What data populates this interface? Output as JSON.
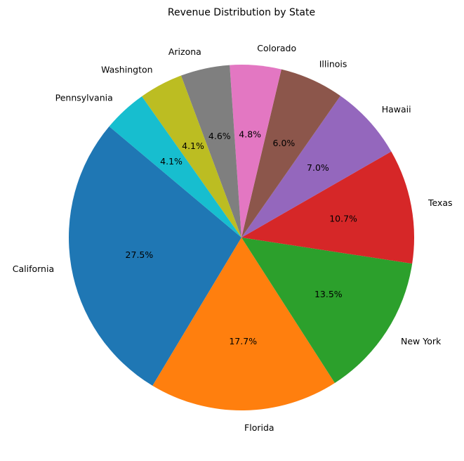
{
  "chart_data": {
    "type": "pie",
    "title": "Revenue Distribution by State",
    "start_angle_deg": 140,
    "direction": "counterclockwise",
    "slices": [
      {
        "label": "California",
        "value": 27.5,
        "pct_label": "27.5%",
        "color": "#1f77b4"
      },
      {
        "label": "Florida",
        "value": 17.7,
        "pct_label": "17.7%",
        "color": "#ff7f0e"
      },
      {
        "label": "New York",
        "value": 13.5,
        "pct_label": "13.5%",
        "color": "#2ca02c"
      },
      {
        "label": "Texas",
        "value": 10.7,
        "pct_label": "10.7%",
        "color": "#d62728"
      },
      {
        "label": "Hawaii",
        "value": 7.0,
        "pct_label": "7.0%",
        "color": "#9467bd"
      },
      {
        "label": "Illinois",
        "value": 6.0,
        "pct_label": "6.0%",
        "color": "#8c564b"
      },
      {
        "label": "Colorado",
        "value": 4.8,
        "pct_label": "4.8%",
        "color": "#e377c2"
      },
      {
        "label": "Arizona",
        "value": 4.6,
        "pct_label": "4.6%",
        "color": "#7f7f7f"
      },
      {
        "label": "Washington",
        "value": 4.1,
        "pct_label": "4.1%",
        "color": "#bcbd22"
      },
      {
        "label": "Pennsylvania",
        "value": 4.1,
        "pct_label": "4.1%",
        "color": "#17becf"
      }
    ]
  }
}
